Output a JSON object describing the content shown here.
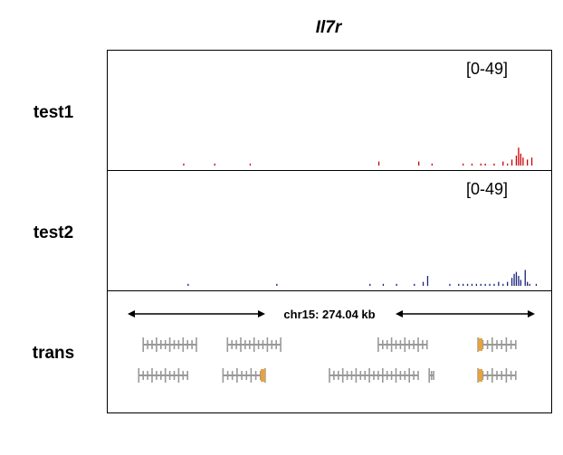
{
  "title": "Il7r",
  "tracks": [
    {
      "label": "test1",
      "range": "[0-49]",
      "color": "#cc0000",
      "peaks": [
        [
          0.17,
          1
        ],
        [
          0.24,
          1
        ],
        [
          0.32,
          1
        ],
        [
          0.61,
          2
        ],
        [
          0.7,
          2
        ],
        [
          0.73,
          1
        ],
        [
          0.8,
          1
        ],
        [
          0.82,
          1
        ],
        [
          0.84,
          1
        ],
        [
          0.85,
          1
        ],
        [
          0.87,
          1
        ],
        [
          0.89,
          2
        ],
        [
          0.9,
          1
        ],
        [
          0.91,
          3
        ],
        [
          0.92,
          5
        ],
        [
          0.925,
          9
        ],
        [
          0.93,
          6
        ],
        [
          0.935,
          4
        ],
        [
          0.945,
          3
        ],
        [
          0.955,
          4
        ]
      ]
    },
    {
      "label": "test2",
      "range": "[0-49]",
      "color": "#1a237e",
      "peaks": [
        [
          0.18,
          1
        ],
        [
          0.38,
          1
        ],
        [
          0.59,
          1
        ],
        [
          0.62,
          1
        ],
        [
          0.65,
          1
        ],
        [
          0.69,
          1
        ],
        [
          0.71,
          2
        ],
        [
          0.72,
          5
        ],
        [
          0.77,
          1
        ],
        [
          0.79,
          1
        ],
        [
          0.8,
          1
        ],
        [
          0.81,
          1
        ],
        [
          0.82,
          1
        ],
        [
          0.83,
          1
        ],
        [
          0.84,
          1
        ],
        [
          0.85,
          1
        ],
        [
          0.86,
          1
        ],
        [
          0.87,
          1
        ],
        [
          0.88,
          2
        ],
        [
          0.89,
          1
        ],
        [
          0.9,
          2
        ],
        [
          0.91,
          4
        ],
        [
          0.915,
          6
        ],
        [
          0.92,
          7
        ],
        [
          0.925,
          5
        ],
        [
          0.93,
          3
        ],
        [
          0.94,
          8
        ],
        [
          0.945,
          2
        ],
        [
          0.95,
          1
        ],
        [
          0.965,
          1
        ]
      ]
    }
  ],
  "trans": {
    "label": "trans",
    "locus": "chr15: 274.04 kb",
    "exon_color": "#999999",
    "utr_color": "#e8a33c",
    "genes": [
      {
        "row": 0,
        "start": 0.08,
        "end": 0.2,
        "utr": []
      },
      {
        "row": 0,
        "start": 0.27,
        "end": 0.39,
        "utr": []
      },
      {
        "row": 0,
        "start": 0.61,
        "end": 0.72,
        "utr": []
      },
      {
        "row": 0,
        "start": 0.835,
        "end": 0.92,
        "utr": [
          0.835,
          0.845
        ]
      },
      {
        "row": 1,
        "start": 0.07,
        "end": 0.18,
        "utr": []
      },
      {
        "row": 1,
        "start": 0.26,
        "end": 0.355,
        "utr": [
          0.345,
          0.355
        ]
      },
      {
        "row": 1,
        "start": 0.5,
        "end": 0.7,
        "utr": []
      },
      {
        "row": 1,
        "start": 0.725,
        "end": 0.735,
        "utr": []
      },
      {
        "row": 1,
        "start": 0.835,
        "end": 0.92,
        "utr": [
          0.835,
          0.845
        ]
      }
    ]
  }
}
